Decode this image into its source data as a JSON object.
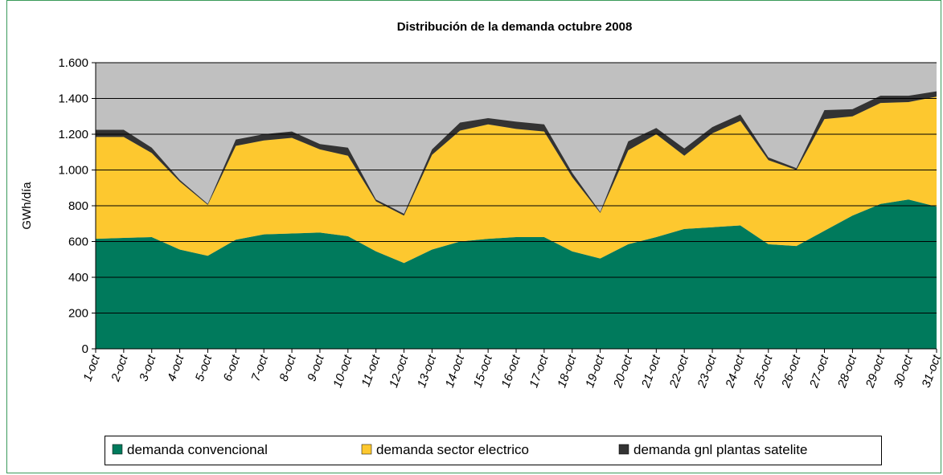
{
  "chart_data": {
    "type": "stacked_area",
    "title": "Distribución de la demanda octubre 2008",
    "y_label": "GWh/día",
    "categories": [
      "1-oct",
      "2-oct",
      "3-oct",
      "4-oct",
      "5-oct",
      "6-oct",
      "7-oct",
      "8-oct",
      "9-oct",
      "10-oct",
      "11-oct",
      "12-oct",
      "13-oct",
      "14-oct",
      "15-oct",
      "16-oct",
      "17-oct",
      "18-oct",
      "19-oct",
      "20-oct",
      "21-oct",
      "22-oct",
      "23-oct",
      "24-oct",
      "25-oct",
      "26-oct",
      "27-oct",
      "28-oct",
      "29-oct",
      "30-oct",
      "31-oct"
    ],
    "series": [
      {
        "name": "demanda convencional",
        "color": "#007a5c",
        "values": [
          615,
          620,
          625,
          555,
          520,
          610,
          640,
          645,
          650,
          630,
          545,
          480,
          555,
          600,
          615,
          625,
          625,
          545,
          505,
          585,
          625,
          670,
          680,
          690,
          585,
          575,
          660,
          745,
          810,
          835,
          795
        ]
      },
      {
        "name": "demanda sector electrico",
        "color": "#fdc82f",
        "values": [
          570,
          565,
          470,
          380,
          285,
          525,
          525,
          535,
          465,
          450,
          280,
          265,
          530,
          620,
          640,
          605,
          590,
          415,
          255,
          525,
          575,
          410,
          525,
          585,
          470,
          425,
          625,
          555,
          565,
          545,
          615
        ]
      },
      {
        "name": "demanda gnl plantas satelite",
        "color": "#333333",
        "values": [
          40,
          40,
          30,
          10,
          5,
          35,
          35,
          35,
          30,
          45,
          10,
          10,
          30,
          45,
          35,
          40,
          40,
          25,
          5,
          50,
          35,
          40,
          35,
          35,
          15,
          10,
          50,
          40,
          40,
          35,
          30
        ]
      }
    ],
    "ylim": [
      0,
      1600
    ],
    "yticks": [
      0,
      200,
      400,
      600,
      800,
      {
        "value": 1000,
        "label": "1.000"
      },
      {
        "value": 1200,
        "label": "1.200"
      },
      {
        "value": 1400,
        "label": "1.400"
      },
      {
        "value": 1600,
        "label": "1.600"
      }
    ],
    "grid": true,
    "plot_background": "#c0c0c0"
  }
}
